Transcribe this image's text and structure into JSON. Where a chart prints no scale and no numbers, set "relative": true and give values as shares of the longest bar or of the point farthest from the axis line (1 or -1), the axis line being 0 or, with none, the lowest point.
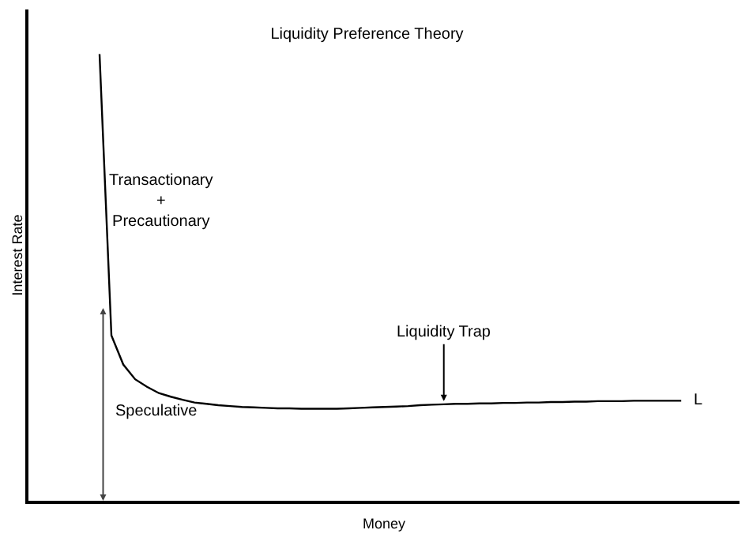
{
  "chart_data": {
    "type": "line",
    "relative": true,
    "title": "Liquidity Preference Theory",
    "xlabel": "Money",
    "ylabel": "Interest Rate",
    "categories": [
      null,
      null,
      null,
      null,
      null,
      null,
      null,
      null,
      null,
      null,
      null,
      null,
      null,
      null,
      null,
      null,
      null,
      null,
      null,
      null,
      null,
      null,
      null,
      null,
      null,
      null,
      null,
      null,
      null,
      null,
      null,
      null,
      null,
      null,
      null,
      null,
      null,
      null,
      null,
      null,
      null,
      null,
      null,
      null,
      null,
      null,
      null,
      null,
      null,
      null
    ],
    "series": [
      {
        "name": "L",
        "color": "#000000",
        "values": [
          1,
          0.37,
          0.305,
          0.272,
          0.255,
          0.241,
          0.233,
          0.226,
          0.22,
          0.217,
          0.214,
          0.212,
          0.21,
          0.209,
          0.208,
          0.207,
          0.207,
          0.206,
          0.206,
          0.206,
          0.206,
          0.207,
          0.208,
          0.209,
          0.21,
          0.211,
          0.212,
          0.214,
          0.215,
          0.216,
          0.217,
          0.217,
          0.218,
          0.218,
          0.219,
          0.219,
          0.22,
          0.22,
          0.221,
          0.221,
          0.222,
          0.222,
          0.223,
          0.223,
          0.223,
          0.224,
          0.224,
          0.224,
          0.224,
          0.224
        ]
      }
    ],
    "annotations": [
      "Liquidity Trap",
      "Transactionary\n+\nPrecautionary",
      "Speculative"
    ],
    "legend": false,
    "marker": "none",
    "line_style": "solid"
  }
}
